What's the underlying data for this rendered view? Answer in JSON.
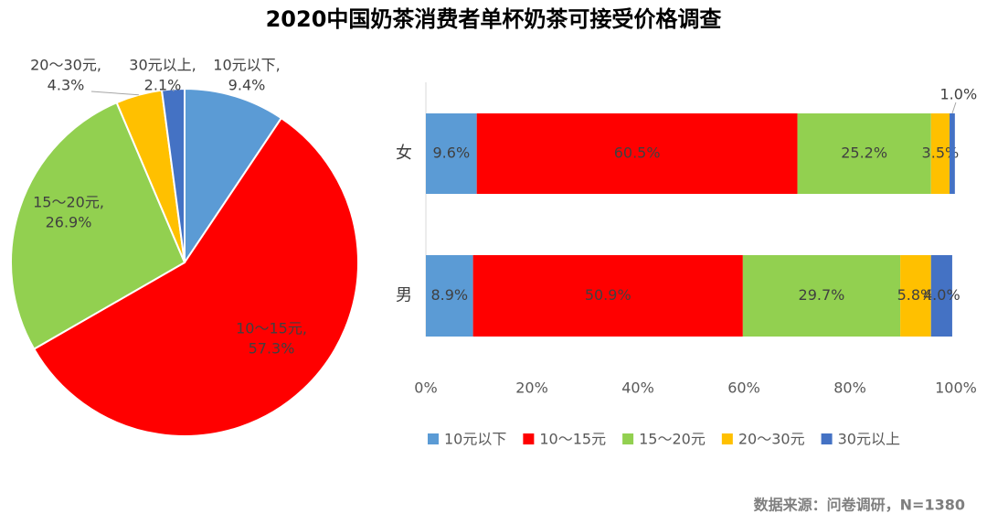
{
  "title": "2020中国奶茶消费者单杯奶茶可接受价格调查",
  "source": "数据来源：问卷调研，N=1380",
  "chart_data": [
    {
      "type": "pie",
      "categories": [
        "10元以下,",
        "10～15元,",
        "15～20元,",
        "20～30元,",
        "30元以上,"
      ],
      "values": [
        9.4,
        57.3,
        26.9,
        4.3,
        2.1
      ],
      "value_labels": [
        "9.4%",
        "57.3%",
        "26.9%",
        "4.3%",
        "2.1%"
      ],
      "colors": [
        "#5b9bd5",
        "#ff0000",
        "#92d050",
        "#ffc000",
        "#4472c4"
      ]
    },
    {
      "type": "bar",
      "orientation": "horizontal",
      "stacked": true,
      "categories": [
        "女",
        "男"
      ],
      "series": [
        {
          "name": "10元以下",
          "color": "#5b9bd5",
          "values": [
            9.6,
            8.9
          ],
          "value_labels": [
            "9.6%",
            "8.9%"
          ]
        },
        {
          "name": "10～15元",
          "color": "#ff0000",
          "values": [
            60.5,
            50.9
          ],
          "value_labels": [
            "60.5%",
            "50.9%"
          ]
        },
        {
          "name": "15～20元",
          "color": "#92d050",
          "values": [
            25.2,
            29.7
          ],
          "value_labels": [
            "25.2%",
            "29.7%"
          ]
        },
        {
          "name": "20～30元",
          "color": "#ffc000",
          "values": [
            3.5,
            5.8
          ],
          "value_labels": [
            "3.5%",
            "5.8%"
          ]
        },
        {
          "name": "30元以上",
          "color": "#4472c4",
          "values": [
            1.0,
            4.0
          ],
          "value_labels": [
            "1.0%",
            "4.0%"
          ]
        }
      ],
      "xlim": [
        0,
        100
      ],
      "xticks": [
        {
          "value": 0,
          "label": "0%"
        },
        {
          "value": 20,
          "label": "20%"
        },
        {
          "value": 40,
          "label": "40%"
        },
        {
          "value": 60,
          "label": "60%"
        },
        {
          "value": 80,
          "label": "80%"
        },
        {
          "value": 100,
          "label": "100%"
        }
      ],
      "legend": "bottom"
    }
  ]
}
